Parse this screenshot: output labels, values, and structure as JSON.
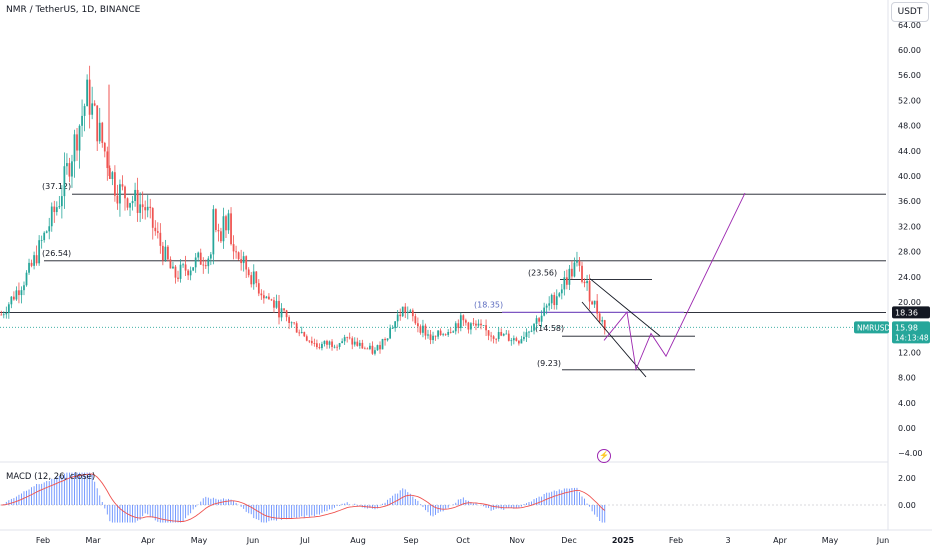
{
  "header": {
    "symbol_title": "NMR / TetherUS, 1D, BINANCE",
    "currency_button": "USDT"
  },
  "macd": {
    "label": "MACD (12, 26, close)"
  },
  "colors": {
    "up": "#26a69a",
    "down": "#ef5350",
    "accent_line": "#9c27b0",
    "macd_hist": "#2962ff",
    "signal": "#ef5350",
    "price_label_bg": "#26a69a",
    "level_label_bg": "#131722"
  },
  "chart_data": [
    {
      "type": "candlestick",
      "title": "NMR / TetherUS, 1D, BINANCE",
      "ylim": [
        -4,
        64
      ],
      "y_ticks": [
        "64.00",
        "60.00",
        "56.00",
        "52.00",
        "48.00",
        "44.00",
        "40.00",
        "36.00",
        "32.00",
        "28.00",
        "24.00",
        "20.00",
        "16.00",
        "12.00",
        "8.00",
        "4.00",
        "0.00",
        "−4.00"
      ],
      "x_ticks": [
        "Feb",
        "Mar",
        "Apr",
        "May",
        "Jun",
        "Jul",
        "Aug",
        "Sep",
        "Oct",
        "Nov",
        "Dec",
        "2025",
        "Feb",
        "3",
        "Apr",
        "May",
        "Jun"
      ],
      "approx_close_path": [
        {
          "month": "Jan",
          "close": 18
        },
        {
          "month": "Feb",
          "close": 25
        },
        {
          "month": "Feb-late",
          "close": 36
        },
        {
          "month": "Mar",
          "close": 53
        },
        {
          "month": "Mar-mid",
          "close": 38
        },
        {
          "month": "Apr",
          "close": 35
        },
        {
          "month": "Apr-mid",
          "close": 24
        },
        {
          "month": "May",
          "close": 27
        },
        {
          "month": "Jun",
          "close": 29
        },
        {
          "month": "Jun-late",
          "close": 22
        },
        {
          "month": "Jul",
          "close": 17
        },
        {
          "month": "Jul-mid",
          "close": 13
        },
        {
          "month": "Aug",
          "close": 14
        },
        {
          "month": "Aug-late",
          "close": 12
        },
        {
          "month": "Sep",
          "close": 19
        },
        {
          "month": "Sep-mid",
          "close": 14
        },
        {
          "month": "Oct",
          "close": 17
        },
        {
          "month": "Oct-mid",
          "close": 15
        },
        {
          "month": "Nov",
          "close": 14
        },
        {
          "month": "Nov-late",
          "close": 19
        },
        {
          "month": "Dec",
          "close": 26
        },
        {
          "month": "Dec-late",
          "close": 16
        }
      ],
      "annotations": [
        {
          "label": "(37.12)",
          "value": 37.12
        },
        {
          "label": "(26.54)",
          "value": 26.54
        },
        {
          "label": "(23.56)",
          "value": 23.56
        },
        {
          "label": "(18.35)",
          "value": 18.35
        },
        {
          "label": "(14.58)",
          "value": 14.58
        },
        {
          "label": "(9.23)",
          "value": 9.23
        }
      ],
      "current_price": {
        "symbol": "NMRUSDT",
        "price": "15.98",
        "countdown": "14:13:48",
        "value": 15.98
      },
      "level_badge": {
        "label": "18.36",
        "value": 18.36
      },
      "grid": false
    },
    {
      "type": "bar",
      "title": "MACD (12, 26, close)",
      "ylim": [
        -1.4,
        3.0
      ],
      "y_ticks": [
        "2.00",
        "0.00"
      ]
    }
  ]
}
